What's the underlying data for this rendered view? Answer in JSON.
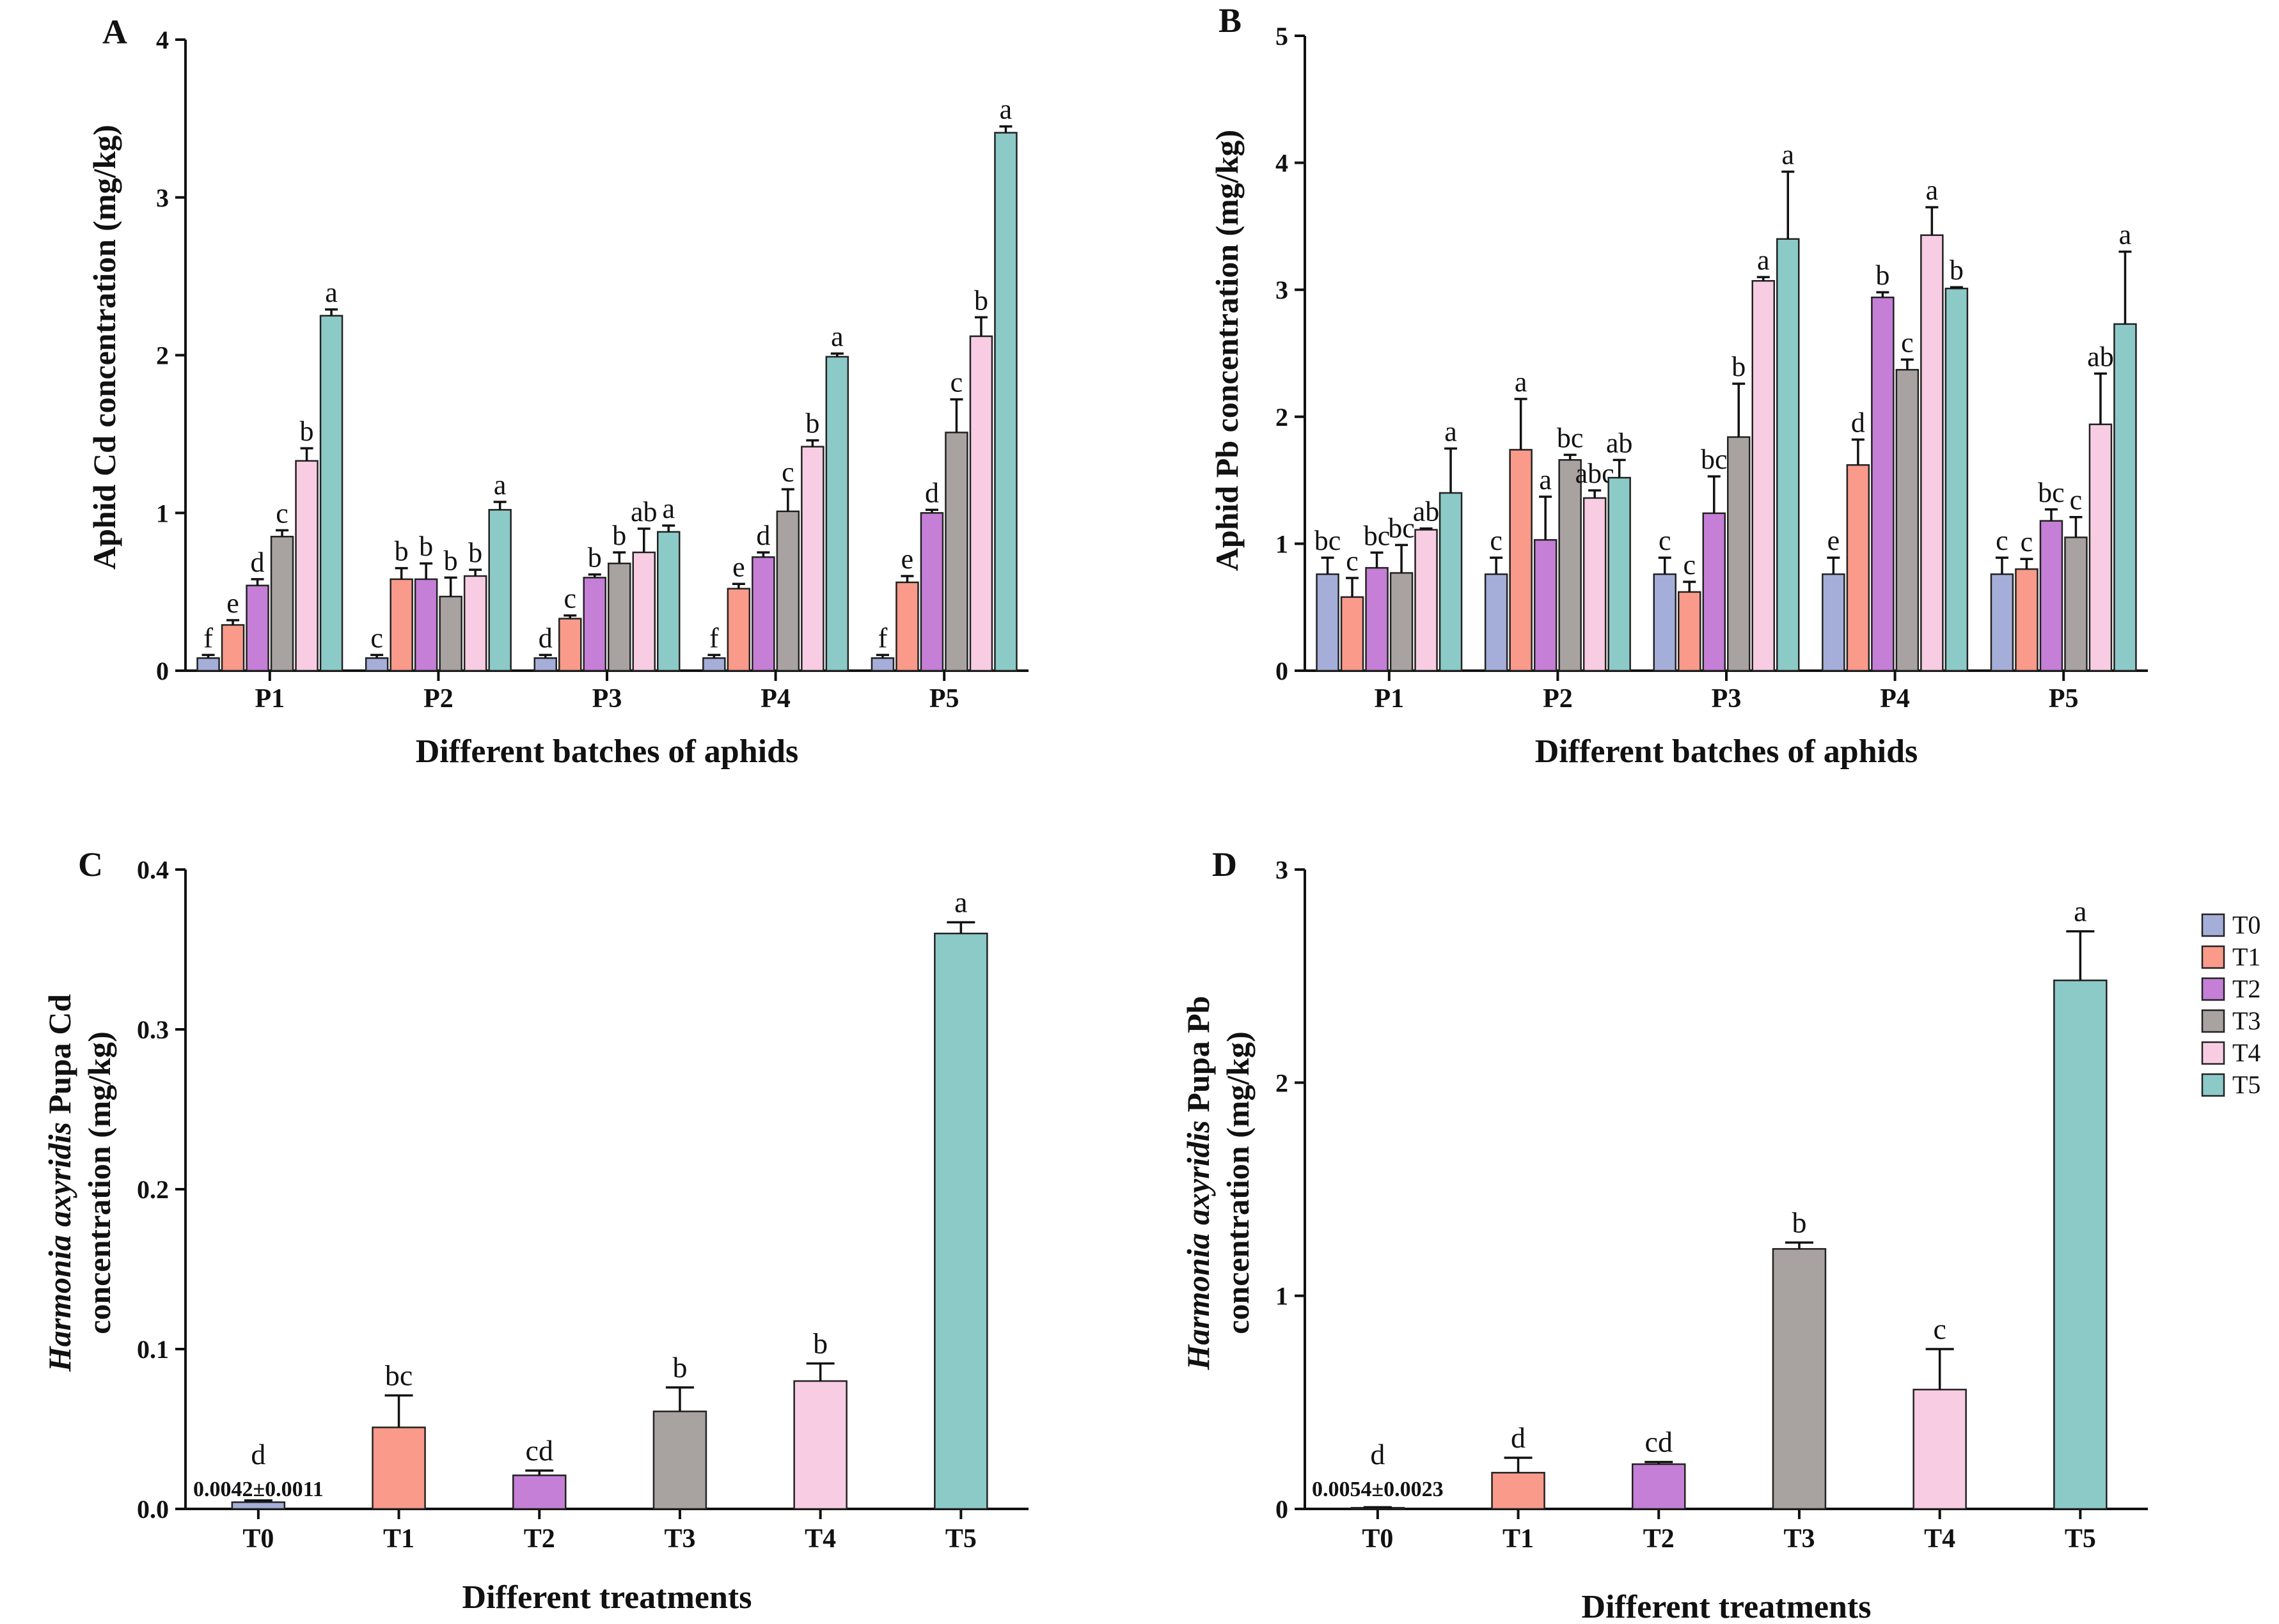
{
  "legend": {
    "items": [
      {
        "name": "T0",
        "color": "#a4aed8"
      },
      {
        "name": "T1",
        "color": "#fa9a8a"
      },
      {
        "name": "T2",
        "color": "#c57fd6"
      },
      {
        "name": "T3",
        "color": "#a8a3a1"
      },
      {
        "name": "T4",
        "color": "#f8cde3"
      },
      {
        "name": "T5",
        "color": "#8ccac8"
      }
    ]
  },
  "chart_data": [
    {
      "panel": "A",
      "type": "bar",
      "title": "",
      "xlabel": "Different batches of aphids",
      "ylabel": "Aphid Cd concentration (mg/kg)",
      "ylim": [
        0,
        4
      ],
      "yticks": [
        "0",
        "1",
        "2",
        "3",
        "4"
      ],
      "categories": [
        "P1",
        "P2",
        "P3",
        "P4",
        "P5"
      ],
      "series": [
        {
          "name": "T0",
          "values": [
            0.08,
            0.08,
            0.08,
            0.08,
            0.08
          ],
          "errors": [
            0.02,
            0.02,
            0.02,
            0.02,
            0.02
          ],
          "letters": [
            "f",
            "c",
            "d",
            "f",
            "f"
          ]
        },
        {
          "name": "T1",
          "values": [
            0.29,
            0.58,
            0.33,
            0.52,
            0.56
          ],
          "errors": [
            0.03,
            0.07,
            0.02,
            0.03,
            0.04
          ],
          "letters": [
            "e",
            "b",
            "c",
            "e",
            "e"
          ]
        },
        {
          "name": "T2",
          "values": [
            0.54,
            0.58,
            0.59,
            0.72,
            1.0
          ],
          "errors": [
            0.04,
            0.1,
            0.02,
            0.03,
            0.02
          ],
          "letters": [
            "d",
            "b",
            "b",
            "d",
            "d"
          ]
        },
        {
          "name": "T3",
          "values": [
            0.85,
            0.47,
            0.68,
            1.01,
            1.51
          ],
          "errors": [
            0.04,
            0.12,
            0.07,
            0.14,
            0.21
          ],
          "letters": [
            "c",
            "b",
            "b",
            "c",
            "c"
          ]
        },
        {
          "name": "T4",
          "values": [
            1.33,
            0.6,
            0.75,
            1.42,
            2.12
          ],
          "errors": [
            0.08,
            0.04,
            0.15,
            0.04,
            0.12
          ],
          "letters": [
            "b",
            "b",
            "ab",
            "b",
            "b"
          ]
        },
        {
          "name": "T5",
          "values": [
            2.25,
            1.02,
            0.88,
            1.99,
            3.41
          ],
          "errors": [
            0.04,
            0.05,
            0.04,
            0.02,
            0.04
          ],
          "letters": [
            "a",
            "a",
            "a",
            "a",
            "a"
          ]
        }
      ]
    },
    {
      "panel": "B",
      "type": "bar",
      "title": "",
      "xlabel": "Different batches of aphids",
      "ylabel": "Aphid Pb concentration (mg/kg)",
      "ylim": [
        0,
        5
      ],
      "yticks": [
        "0",
        "1",
        "2",
        "3",
        "4",
        "5"
      ],
      "categories": [
        "P1",
        "P2",
        "P3",
        "P4",
        "P5"
      ],
      "series": [
        {
          "name": "T0",
          "values": [
            0.76,
            0.76,
            0.76,
            0.76,
            0.76
          ],
          "errors": [
            0.13,
            0.13,
            0.13,
            0.13,
            0.13
          ],
          "letters": [
            "bc",
            "c",
            "c",
            "e",
            "c"
          ]
        },
        {
          "name": "T1",
          "values": [
            0.58,
            1.74,
            0.62,
            1.62,
            0.8
          ],
          "errors": [
            0.15,
            0.4,
            0.08,
            0.2,
            0.08
          ],
          "letters": [
            "c",
            "a",
            "c",
            "d",
            "c"
          ]
        },
        {
          "name": "T2",
          "values": [
            0.81,
            1.03,
            1.24,
            2.94,
            1.18
          ],
          "errors": [
            0.12,
            0.34,
            0.29,
            0.04,
            0.09
          ],
          "letters": [
            "bc",
            "a",
            "bc",
            "b",
            "bc"
          ]
        },
        {
          "name": "T3",
          "values": [
            0.77,
            1.66,
            1.84,
            2.37,
            1.05
          ],
          "errors": [
            0.22,
            0.04,
            0.42,
            0.08,
            0.16
          ],
          "letters": [
            "bc",
            "bc",
            "b",
            "c",
            "c"
          ]
        },
        {
          "name": "T4",
          "values": [
            1.11,
            1.36,
            3.07,
            3.43,
            1.94
          ],
          "errors": [
            0.01,
            0.06,
            0.03,
            0.22,
            0.4
          ],
          "letters": [
            "ab",
            "abc",
            "a",
            "a",
            "ab"
          ]
        },
        {
          "name": "T5",
          "values": [
            1.4,
            1.52,
            3.4,
            3.01,
            2.73
          ],
          "errors": [
            0.35,
            0.14,
            0.53,
            0.01,
            0.57
          ],
          "letters": [
            "a",
            "ab",
            "a",
            "b",
            "a"
          ]
        }
      ]
    },
    {
      "panel": "C",
      "type": "bar",
      "title": "",
      "xlabel": "Different treatments",
      "ylabel_italic": "Harmonia axyridis",
      "ylabel_rest": " Pupa Cd",
      "ylabel_line2": "concentration (mg/kg)",
      "ylim": [
        0,
        0.4
      ],
      "yticks": [
        "0.0",
        "0.1",
        "0.2",
        "0.3",
        "0.4"
      ],
      "categories": [
        "T0",
        "T1",
        "T2",
        "T3",
        "T4",
        "T5"
      ],
      "values": [
        0.0042,
        0.051,
        0.021,
        0.061,
        0.08,
        0.36
      ],
      "errors": [
        0.0011,
        0.02,
        0.003,
        0.015,
        0.011,
        0.007
      ],
      "letters": [
        "d",
        "bc",
        "cd",
        "b",
        "b",
        "a"
      ],
      "annotation": "0.0042±0.0011"
    },
    {
      "panel": "D",
      "type": "bar",
      "title": "",
      "xlabel": "Different treatments",
      "ylabel_italic": "Harmonia axyridis",
      "ylabel_rest": " Pupa Pb",
      "ylabel_line2": "concentration (mg/kg)",
      "ylim": [
        0,
        3
      ],
      "yticks": [
        "0",
        "1",
        "2",
        "3"
      ],
      "categories": [
        "T0",
        "T1",
        "T2",
        "T3",
        "T4",
        "T5"
      ],
      "values": [
        0.0054,
        0.17,
        0.21,
        1.22,
        0.56,
        2.48
      ],
      "errors": [
        0.0023,
        0.07,
        0.01,
        0.03,
        0.19,
        0.23
      ],
      "letters": [
        "d",
        "d",
        "cd",
        "b",
        "c",
        "a"
      ],
      "annotation": "0.0054±0.0023"
    }
  ]
}
